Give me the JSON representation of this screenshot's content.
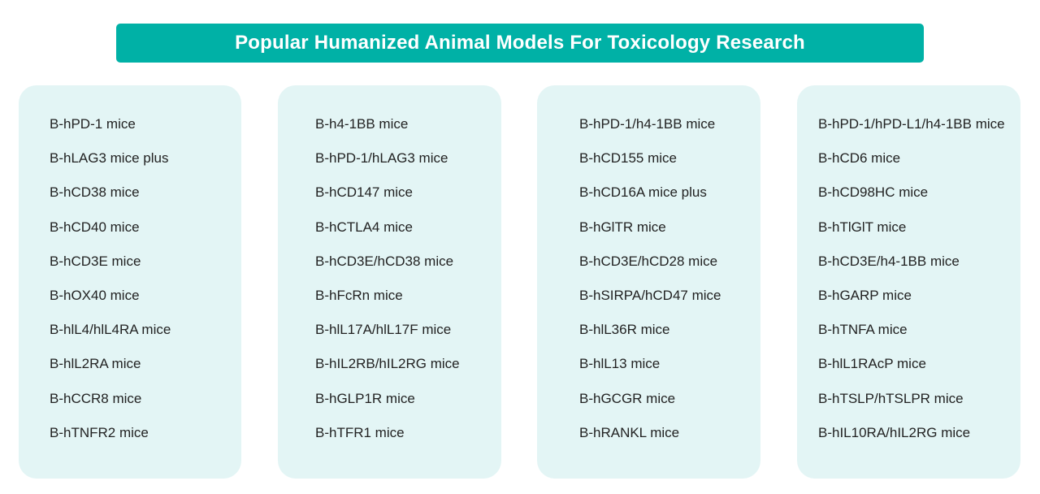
{
  "title": "Popular Humanized Animal Models For Toxicology Research",
  "accent_color": "#00b1a6",
  "card_color": "#e3f5f5",
  "columns": [
    {
      "items": [
        "B-hPD-1 mice",
        "B-hLAG3 mice plus",
        "B-hCD38 mice",
        "B-hCD40 mice",
        "B-hCD3E mice",
        "B-hOX40 mice",
        "B-hlL4/hlL4RA mice",
        "B-hlL2RA mice",
        "B-hCCR8 mice",
        "B-hTNFR2 mice"
      ]
    },
    {
      "items": [
        "B-h4-1BB mice",
        "B-hPD-1/hLAG3 mice",
        "B-hCD147 mice",
        "B-hCTLA4 mice",
        "B-hCD3E/hCD38 mice",
        "B-hFcRn mice",
        "B-hlL17A/hlL17F mice",
        "B-hIL2RB/hIL2RG mice",
        "B-hGLP1R mice",
        "B-hTFR1 mice"
      ]
    },
    {
      "items": [
        "B-hPD-1/h4-1BB mice",
        "B-hCD155 mice",
        "B-hCD16A mice plus",
        "B-hGlTR mice",
        "B-hCD3E/hCD28 mice",
        "B-hSIRPA/hCD47 mice",
        "B-hlL36R mice",
        "B-hlL13 mice",
        "B-hGCGR mice",
        "B-hRANKL mice"
      ]
    },
    {
      "items": [
        "B-hPD-1/hPD-L1/h4-1BB mice",
        "B-hCD6 mice",
        "B-hCD98HC mice",
        "B-hTlGlT mice",
        "B-hCD3E/h4-1BB mice",
        "B-hGARP mice",
        "B-hTNFA mice",
        "B-hlL1RAcP mice",
        "B-hTSLP/hTSLPR mice",
        "B-hIL10RA/hIL2RG mice"
      ]
    }
  ]
}
